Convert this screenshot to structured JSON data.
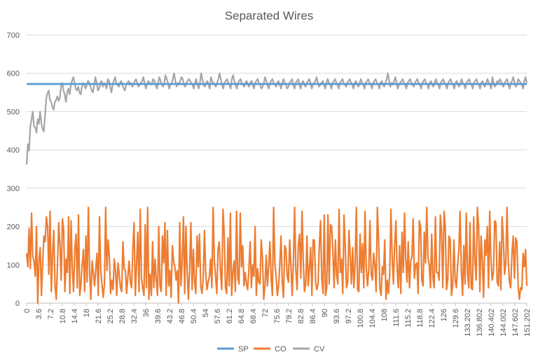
{
  "chart_data": {
    "type": "line",
    "title": "Separated Wires",
    "xlabel": "",
    "ylabel": "",
    "ylim": [
      0,
      700
    ],
    "yticks": [
      0,
      100,
      200,
      300,
      400,
      500,
      600,
      700
    ],
    "grid": true,
    "legend_position": "bottom",
    "x_tick_labels": [
      "0",
      "3.6",
      "7.2",
      "10.8",
      "14.4",
      "18",
      "21.6",
      "25.2",
      "28.8",
      "32.4",
      "36",
      "39.6",
      "43.2",
      "46.8",
      "50.4",
      "54",
      "57.6",
      "61.2",
      "64.8",
      "68.4",
      "72",
      "75.6",
      "79.2",
      "82.8",
      "86.4",
      "90",
      "93.6",
      "97.2",
      "100.8",
      "104.4",
      "108",
      "111.6",
      "115.2",
      "118.8",
      "122.4",
      "126",
      "129.6",
      "133.202",
      "136.802",
      "140.402",
      "144.002",
      "147.602",
      "151.202"
    ],
    "series": [
      {
        "name": "SP",
        "color": "#5b9bd5",
        "constant": 572
      },
      {
        "name": "CO",
        "color": "#ed7d31",
        "values": [
          130,
          95,
          195,
          90,
          235,
          120,
          110,
          70,
          200,
          0,
          115,
          145,
          20,
          105,
          175,
          160,
          225,
          200,
          75,
          240,
          30,
          125,
          190,
          45,
          10,
          100,
          210,
          150,
          60,
          220,
          190,
          30,
          115,
          80,
          225,
          25,
          215,
          90,
          30,
          140,
          180,
          40,
          230,
          20,
          50,
          100,
          140,
          30,
          175,
          55,
          250,
          85,
          10,
          110,
          80,
          45,
          90,
          130,
          20,
          225,
          85,
          50,
          15,
          50,
          250,
          85,
          165,
          120,
          25,
          60,
          35,
          115,
          85,
          20,
          105,
          75,
          40,
          30,
          160,
          90,
          85,
          25,
          70,
          110,
          55,
          40,
          140,
          210,
          20,
          100,
          185,
          30,
          245,
          65,
          40,
          20,
          205,
          40,
          250,
          10,
          75,
          20,
          160,
          40,
          115,
          60,
          20,
          200,
          45,
          30,
          175,
          105,
          210,
          20,
          190,
          45,
          85,
          15,
          150,
          110,
          95,
          60,
          85,
          0,
          210,
          45,
          110,
          225,
          25,
          200,
          80,
          10,
          90,
          210,
          35,
          140,
          55,
          25,
          175,
          95,
          180,
          45,
          25,
          65,
          190,
          80,
          35,
          55,
          70,
          115,
          40,
          250,
          110,
          70,
          25,
          140,
          160,
          80,
          35,
          245,
          180,
          40,
          25,
          170,
          45,
          235,
          20,
          80,
          110,
          30,
          240,
          65,
          50,
          235,
          95,
          150,
          45,
          80,
          50,
          35,
          90,
          160,
          40,
          100,
          70,
          200,
          20,
          90,
          55,
          50,
          165,
          115,
          10,
          45,
          125,
          45,
          95,
          160,
          65,
          20,
          250,
          105,
          70,
          20,
          45,
          100,
          175,
          55,
          15,
          150,
          140,
          70,
          55,
          165,
          100,
          20,
          105,
          250,
          85,
          35,
          150,
          180,
          65,
          240,
          110,
          30,
          50,
          175,
          45,
          90,
          145,
          20,
          165,
          165,
          55,
          35,
          50,
          150,
          215,
          65,
          25,
          230,
          20,
          40,
          230,
          50,
          205,
          200,
          135,
          40,
          165,
          75,
          50,
          245,
          80,
          115,
          25,
          230,
          145,
          40,
          55,
          190,
          125,
          50,
          145,
          40,
          105,
          250,
          35,
          30,
          180,
          80,
          155,
          40,
          240,
          95,
          45,
          85,
          215,
          75,
          60,
          130,
          100,
          30,
          250,
          165,
          40,
          20,
          95,
          75,
          165,
          10,
          60,
          25,
          75,
          245,
          120,
          50,
          150,
          215,
          90,
          40,
          150,
          25,
          185,
          80,
          235,
          115,
          55,
          160,
          40,
          110,
          120,
          220,
          65,
          100,
          105,
          25,
          215,
          200,
          60,
          45,
          185,
          105,
          250,
          120,
          100,
          40,
          180,
          65,
          40,
          225,
          80,
          80,
          60,
          230,
          185,
          40,
          240,
          200,
          35,
          60,
          175,
          165,
          20,
          45,
          165,
          60,
          40,
          100,
          140,
          240,
          85,
          20,
          150,
          50,
          235,
          80,
          40,
          210,
          40,
          35,
          225,
          110,
          60,
          250,
          200,
          30,
          175,
          110,
          15,
          165,
          125,
          200,
          40,
          240,
          110,
          60,
          80,
          215,
          210,
          55,
          45,
          160,
          35,
          225,
          170,
          75,
          105,
          250,
          110,
          55,
          40,
          130,
          175,
          65,
          170,
          160,
          45,
          10,
          40,
          35,
          130,
          95,
          140,
          45
        ]
      },
      {
        "name": "CV",
        "color": "#a5a5a5",
        "values": [
          362,
          415,
          398,
          460,
          480,
          500,
          462,
          458,
          445,
          480,
          468,
          500,
          470,
          455,
          448,
          490,
          535,
          548,
          555,
          530,
          525,
          512,
          505,
          525,
          530,
          540,
          528,
          535,
          565,
          575,
          555,
          545,
          525,
          550,
          560,
          545,
          570,
          580,
          590,
          575,
          560,
          555,
          565,
          550,
          545,
          565,
          575,
          570,
          560,
          570,
          580,
          575,
          565,
          555,
          550,
          570,
          590,
          575,
          555,
          560,
          575,
          580,
          565,
          575,
          570,
          560,
          585,
          580,
          565,
          550,
          570,
          580,
          590,
          575,
          570,
          565,
          575,
          580,
          570,
          560,
          555,
          570,
          575,
          580,
          570,
          575,
          565,
          570,
          580,
          585,
          575,
          565,
          570,
          575,
          580,
          590,
          575,
          560,
          570,
          580,
          575,
          570,
          575,
          585,
          580,
          570,
          560,
          575,
          590,
          580,
          570,
          565,
          575,
          595,
          585,
          575,
          560,
          570,
          575,
          585,
          600,
          580,
          565,
          575,
          570,
          580,
          590,
          585,
          570,
          565,
          575,
          580,
          585,
          580,
          575,
          570,
          560,
          575,
          585,
          570,
          560,
          575,
          600,
          585,
          570,
          565,
          575,
          580,
          570,
          560,
          590,
          580,
          575,
          570,
          565,
          575,
          585,
          600,
          585,
          570,
          560,
          575,
          580,
          585,
          575,
          570,
          560,
          585,
          595,
          580,
          570,
          560,
          575,
          580,
          585,
          575,
          570,
          565,
          575,
          580,
          570,
          565,
          575,
          580,
          570,
          560,
          575,
          580,
          585,
          575,
          570,
          560,
          565,
          575,
          590,
          580,
          570,
          560,
          575,
          580,
          585,
          575,
          570,
          565,
          575,
          580,
          570,
          560,
          575,
          585,
          575,
          570,
          560,
          565,
          575,
          580,
          585,
          570,
          560,
          575,
          580,
          585,
          570,
          560,
          575,
          580,
          570,
          565,
          575,
          580,
          585,
          575,
          560,
          570,
          575,
          580,
          590,
          575,
          565,
          570,
          575,
          580,
          570,
          560,
          575,
          585,
          575,
          570,
          560,
          575,
          580,
          585,
          575,
          570,
          560,
          575,
          580,
          585,
          575,
          570,
          565,
          575,
          580,
          585,
          575,
          570,
          560,
          575,
          580,
          570,
          565,
          575,
          585,
          575,
          570,
          560,
          575,
          580,
          585,
          575,
          570,
          560,
          575,
          580,
          585,
          575,
          570,
          560,
          575,
          580,
          570,
          565,
          575,
          585,
          600,
          580,
          565,
          575,
          570,
          580,
          590,
          575,
          560,
          570,
          575,
          580,
          585,
          575,
          570,
          560,
          575,
          580,
          585,
          575,
          570,
          565,
          575,
          580,
          585,
          575,
          570,
          560,
          575,
          580,
          585,
          575,
          570,
          560,
          575,
          580,
          570,
          565,
          575,
          585,
          575,
          570,
          560,
          575,
          580,
          585,
          575,
          570,
          560,
          575,
          580,
          585,
          575,
          570,
          560,
          575,
          580,
          570,
          565,
          575,
          585,
          575,
          570,
          560,
          575,
          580,
          585,
          575,
          570,
          560,
          575,
          580,
          585,
          575,
          570,
          560,
          575,
          580,
          570,
          565,
          575,
          585,
          575,
          570,
          560,
          590,
          575,
          565,
          570,
          580,
          575,
          585,
          580,
          570,
          565,
          575,
          580,
          585,
          570,
          560,
          575,
          580,
          590,
          575,
          565,
          570,
          585,
          580,
          575,
          570,
          560,
          580,
          590,
          575
        ]
      }
    ]
  }
}
